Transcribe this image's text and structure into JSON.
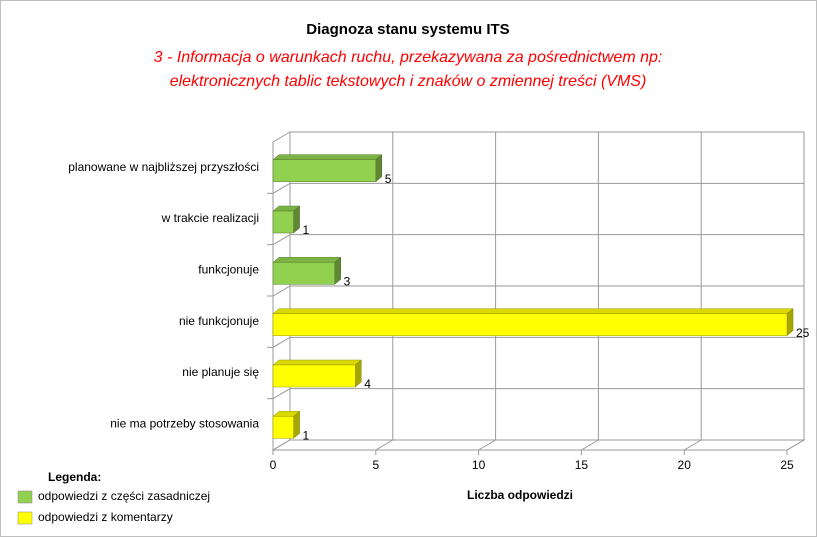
{
  "chart_data": {
    "type": "bar3d_horizontal",
    "title": "Diagnoza stanu systemu ITS",
    "subtitle": [
      "3 - Informacja o warunkach ruchu, przekazywana za pośrednictwem np:",
      "elektronicznych tablic tekstowych i znaków o zmiennej treści (VMS)"
    ],
    "categories": [
      "planowane w najbliższej przyszłości",
      "w trakcie realizacji",
      "funkcjonuje",
      "nie funkcjonuje",
      "nie planuje się",
      "nie ma potrzeby stosowania"
    ],
    "series": [
      {
        "name": "odpowiedzi z części zasadniczej",
        "color": "#92d050",
        "values": [
          5,
          1,
          3,
          null,
          null,
          null
        ]
      },
      {
        "name": "odpowiedzi z komentarzy",
        "color": "#ffff00",
        "values": [
          null,
          null,
          null,
          25,
          4,
          1
        ]
      }
    ],
    "xlabel": "Liczba odpowiedzi",
    "legend_title": "Legenda:",
    "xlim": [
      0,
      25
    ],
    "xticks": [
      0,
      5,
      10,
      15,
      20,
      25
    ],
    "grid": true
  }
}
